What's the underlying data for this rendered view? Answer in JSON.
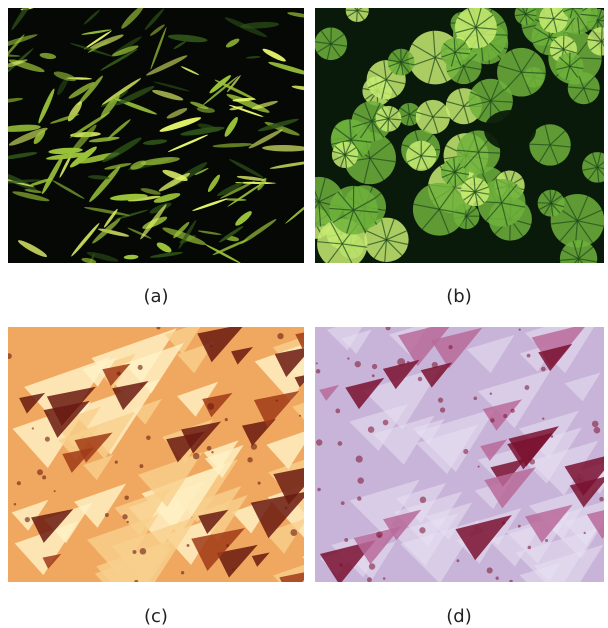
{
  "figure": {
    "panels": [
      {
        "id": "a",
        "caption": "(a)",
        "palette": {
          "bg": "#050805",
          "light": "#e4f56a",
          "mid": "#9cc43a",
          "dark": "#2e5218"
        }
      },
      {
        "id": "b",
        "caption": "(b)",
        "palette": {
          "bg": "#0a1a0a",
          "light": "#c8ec72",
          "mid": "#6fb23c",
          "dark": "#1e4a1c"
        }
      },
      {
        "id": "c",
        "caption": "(c)",
        "palette": {
          "bg": "#f0a860",
          "light": "#fff2c8",
          "mid": "#e07a30",
          "dark": "#6a1a10"
        }
      },
      {
        "id": "d",
        "caption": "(d)",
        "palette": {
          "bg": "#c8b4d8",
          "light": "#e8e0f2",
          "mid": "#b86a9a",
          "dark": "#7a1030"
        }
      }
    ]
  }
}
